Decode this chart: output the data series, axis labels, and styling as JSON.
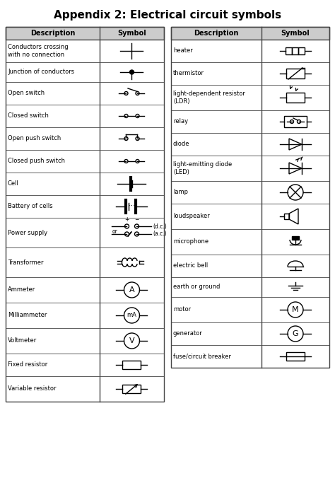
{
  "title": "Appendix 2: Electrical circuit symbols",
  "title_fontsize": 11,
  "title_fontweight": "bold",
  "bg_color": "#ffffff",
  "header_bg": "#cccccc",
  "border_color": "#444444",
  "text_color": "#000000",
  "symbol_color": "#000000",
  "left_rows": [
    "Conductors crossing\nwith no connection",
    "Junction of conductors",
    "Open switch",
    "Closed switch",
    "Open push switch",
    "Closed push switch",
    "Cell",
    "Battery of cells",
    "Power supply",
    "Transformer",
    "Ammeter",
    "Milliammeter",
    "Voltmeter",
    "Fixed resistor",
    "Variable resistor"
  ],
  "right_rows": [
    "heater",
    "thermistor",
    "light-dependent resistor\n(LDR)",
    "relay",
    "diode",
    "light-emitting diode\n(LED)",
    "lamp",
    "loudspeaker",
    "microphone",
    "electric bell",
    "earth or ground",
    "motor",
    "generator",
    "fuse/circuit breaker"
  ],
  "fig_w": 4.74,
  "fig_h": 6.76,
  "dpi": 100
}
